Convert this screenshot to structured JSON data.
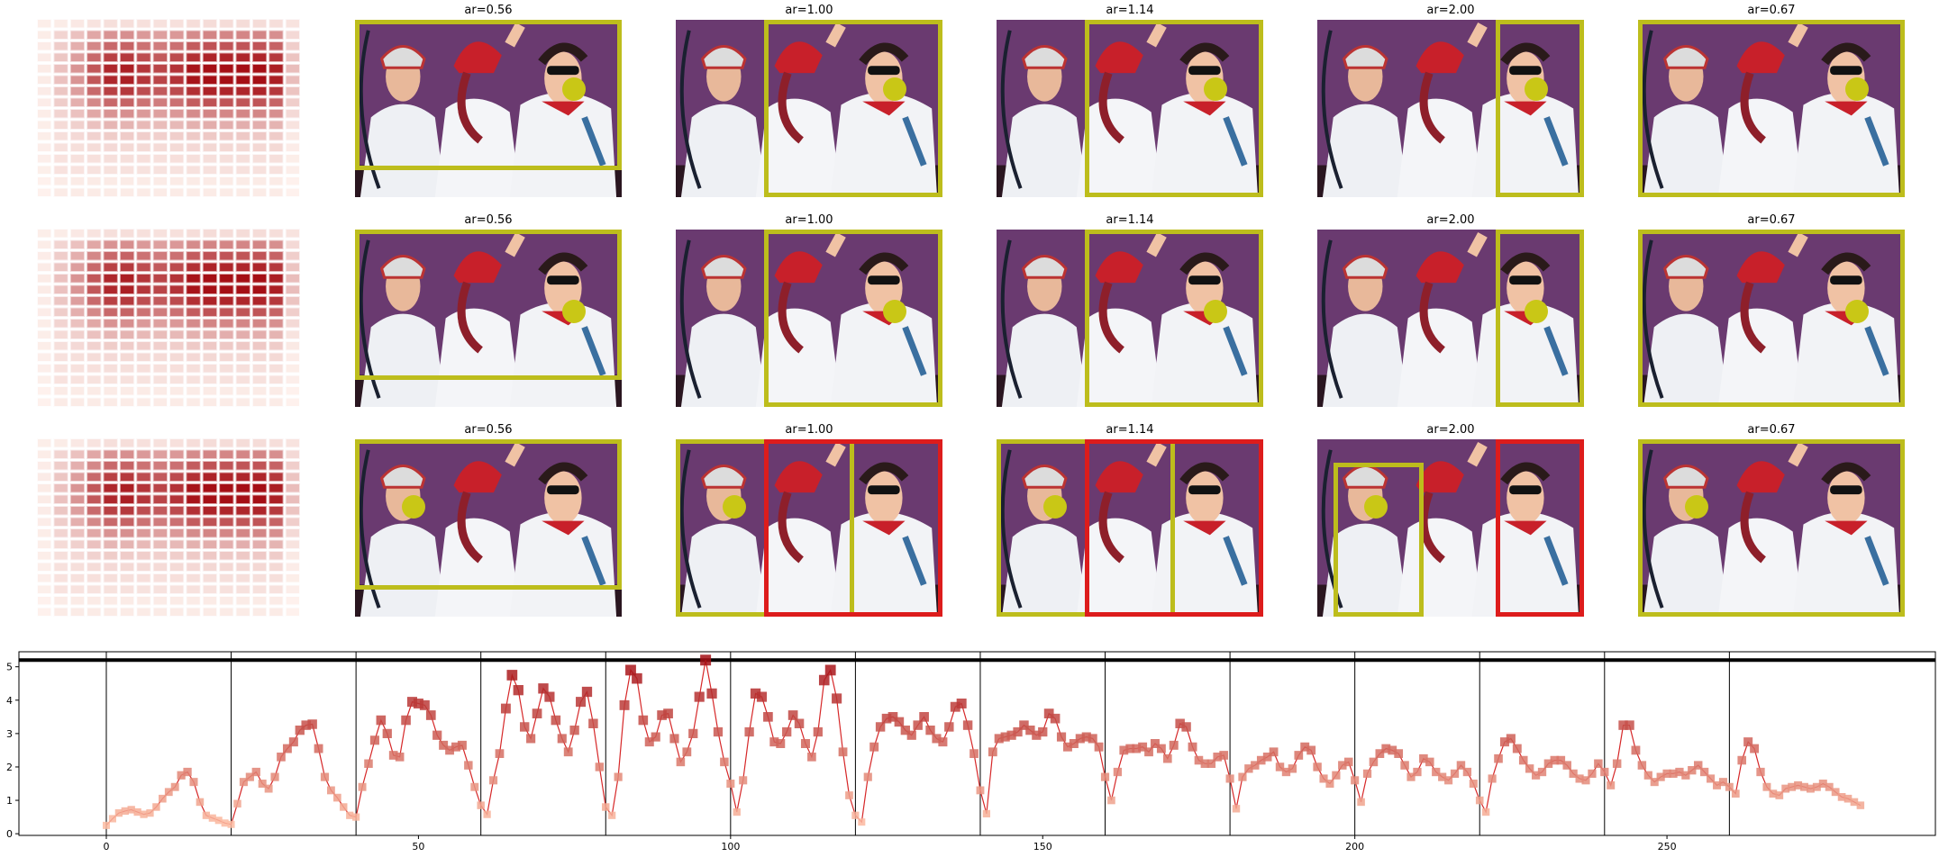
{
  "figure_type": "heatmap + image grid + line chart",
  "colors": {
    "selected_box": "#bdbd1c",
    "alternate_box": "#dd1c1c",
    "focus_point": "#c9c716",
    "line": "#d62728",
    "heat_low": "#fff5f0",
    "heat_high": "#a50f15",
    "photo_background": "#6a3a70"
  },
  "rows": [
    {
      "heatmap": {
        "grid_size": 16
      },
      "panels": [
        {
          "title": "ar=0.56",
          "focus": "right-face",
          "boxes": [
            {
              "color": "selected",
              "span": "top-full"
            }
          ]
        },
        {
          "title": "ar=1.00",
          "focus": "right-face",
          "boxes": [
            {
              "color": "selected",
              "span": "right"
            }
          ]
        },
        {
          "title": "ar=1.14",
          "focus": "right-face",
          "boxes": [
            {
              "color": "selected",
              "span": "right"
            }
          ]
        },
        {
          "title": "ar=2.00",
          "focus": "right-face",
          "boxes": [
            {
              "color": "selected",
              "span": "right-narrow"
            }
          ]
        },
        {
          "title": "ar=0.67",
          "focus": "right-face",
          "boxes": [
            {
              "color": "selected",
              "span": "full"
            }
          ]
        }
      ]
    },
    {
      "heatmap": {
        "grid_size": 16
      },
      "panels": [
        {
          "title": "ar=0.56",
          "focus": "right-shoulder",
          "boxes": [
            {
              "color": "selected",
              "span": "top-full"
            }
          ]
        },
        {
          "title": "ar=1.00",
          "focus": "right-shoulder",
          "boxes": [
            {
              "color": "selected",
              "span": "right"
            }
          ]
        },
        {
          "title": "ar=1.14",
          "focus": "right-shoulder",
          "boxes": [
            {
              "color": "selected",
              "span": "right"
            }
          ]
        },
        {
          "title": "ar=2.00",
          "focus": "right-shoulder",
          "boxes": [
            {
              "color": "selected",
              "span": "right-narrow"
            }
          ]
        },
        {
          "title": "ar=0.67",
          "focus": "right-shoulder",
          "boxes": [
            {
              "color": "selected",
              "span": "full"
            }
          ]
        }
      ]
    },
    {
      "heatmap": {
        "grid_size": 16
      },
      "panels": [
        {
          "title": "ar=0.56",
          "focus": "left-face",
          "boxes": [
            {
              "color": "selected",
              "span": "top-full"
            }
          ]
        },
        {
          "title": "ar=1.00",
          "focus": "left-face",
          "boxes": [
            {
              "color": "selected",
              "span": "left"
            },
            {
              "color": "alternate",
              "span": "right"
            }
          ]
        },
        {
          "title": "ar=1.14",
          "focus": "left-face",
          "boxes": [
            {
              "color": "selected",
              "span": "left"
            },
            {
              "color": "alternate",
              "span": "right"
            }
          ]
        },
        {
          "title": "ar=2.00",
          "focus": "left-face",
          "boxes": [
            {
              "color": "selected",
              "span": "left-narrow"
            },
            {
              "color": "alternate",
              "span": "right-narrow"
            }
          ]
        },
        {
          "title": "ar=0.67",
          "focus": "left-face",
          "boxes": [
            {
              "color": "selected",
              "span": "full"
            }
          ]
        }
      ]
    }
  ],
  "chart_data": {
    "type": "line",
    "title": "",
    "xlabel": "",
    "ylabel": "",
    "xlim": [
      -14,
      293
    ],
    "ylim": [
      -0.05,
      5.45
    ],
    "xticks": [
      0,
      50,
      100,
      150,
      200,
      250
    ],
    "yticks": [
      0,
      1,
      2,
      3,
      4,
      5
    ],
    "grid": false,
    "legend": "none",
    "reference_line": {
      "y": 5.2,
      "style": "thick-black-horizontal"
    },
    "segment_boundaries": [
      0,
      20,
      40,
      60,
      80,
      100,
      120,
      140,
      160,
      180,
      200,
      220,
      240,
      260
    ],
    "series": [
      {
        "values": [
          0.25,
          0.45,
          0.62,
          0.68,
          0.72,
          0.65,
          0.58,
          0.62,
          0.8,
          1.05,
          1.25,
          1.4,
          1.75,
          1.85,
          1.55,
          0.95,
          0.55,
          0.47,
          0.4,
          0.32,
          0.28,
          0.9,
          1.55,
          1.7,
          1.85,
          1.5,
          1.35,
          1.7,
          2.3,
          2.55,
          2.75,
          3.1,
          3.25,
          3.28,
          2.55,
          1.7,
          1.3,
          1.08,
          0.8,
          0.55,
          0.5,
          1.4,
          2.1,
          2.8,
          3.4,
          3.0,
          2.35,
          2.3,
          3.4,
          3.95,
          3.9,
          3.85,
          3.55,
          2.95,
          2.65,
          2.5,
          2.6,
          2.65,
          2.05,
          1.4,
          0.85,
          0.58,
          1.6,
          2.4,
          3.75,
          4.75,
          4.3,
          3.2,
          2.85,
          3.6,
          4.35,
          4.1,
          3.4,
          2.85,
          2.45,
          3.1,
          3.95,
          4.25,
          3.3,
          2.0,
          0.8,
          0.55,
          1.7,
          3.85,
          4.9,
          4.65,
          3.4,
          2.75,
          2.9,
          3.55,
          3.6,
          2.85,
          2.15,
          2.45,
          3.0,
          4.1,
          5.2,
          4.2,
          3.05,
          2.15,
          1.5,
          0.65,
          1.6,
          3.05,
          4.2,
          4.1,
          3.5,
          2.75,
          2.7,
          3.05,
          3.55,
          3.3,
          2.7,
          2.3,
          3.05,
          4.6,
          4.9,
          4.05,
          2.45,
          1.15,
          0.55,
          0.35,
          1.7,
          2.6,
          3.2,
          3.45,
          3.5,
          3.35,
          3.1,
          2.95,
          3.25,
          3.5,
          3.1,
          2.85,
          2.75,
          3.2,
          3.8,
          3.9,
          3.25,
          2.4,
          1.3,
          0.6,
          2.45,
          2.85,
          2.9,
          2.95,
          3.05,
          3.25,
          3.1,
          2.95,
          3.05,
          3.6,
          3.45,
          2.9,
          2.6,
          2.7,
          2.85,
          2.9,
          2.85,
          2.6,
          1.7,
          1.0,
          1.85,
          2.5,
          2.55,
          2.55,
          2.6,
          2.45,
          2.7,
          2.55,
          2.25,
          2.65,
          3.3,
          3.2,
          2.6,
          2.2,
          2.1,
          2.1,
          2.3,
          2.35,
          1.65,
          0.75,
          1.7,
          1.95,
          2.05,
          2.2,
          2.3,
          2.45,
          2.0,
          1.85,
          1.95,
          2.35,
          2.6,
          2.5,
          2.0,
          1.65,
          1.5,
          1.75,
          2.05,
          2.15,
          1.6,
          0.95,
          1.8,
          2.15,
          2.4,
          2.55,
          2.5,
          2.4,
          2.05,
          1.7,
          1.85,
          2.25,
          2.15,
          1.85,
          1.7,
          1.6,
          1.8,
          2.05,
          1.85,
          1.5,
          1.0,
          0.65,
          1.65,
          2.25,
          2.75,
          2.85,
          2.55,
          2.2,
          1.95,
          1.75,
          1.85,
          2.1,
          2.2,
          2.2,
          2.05,
          1.8,
          1.65,
          1.6,
          1.8,
          2.1,
          1.85,
          1.45,
          2.1,
          3.25,
          3.25,
          2.5,
          2.05,
          1.75,
          1.55,
          1.7,
          1.8,
          1.8,
          1.85,
          1.75,
          1.9,
          2.05,
          1.85,
          1.65,
          1.45,
          1.55,
          1.4,
          1.2,
          2.2,
          2.75,
          2.55,
          1.85,
          1.4,
          1.2,
          1.15,
          1.35,
          1.4,
          1.45,
          1.4,
          1.35,
          1.4,
          1.5,
          1.4,
          1.25,
          1.1,
          1.05,
          0.95,
          0.85
        ]
      }
    ]
  }
}
